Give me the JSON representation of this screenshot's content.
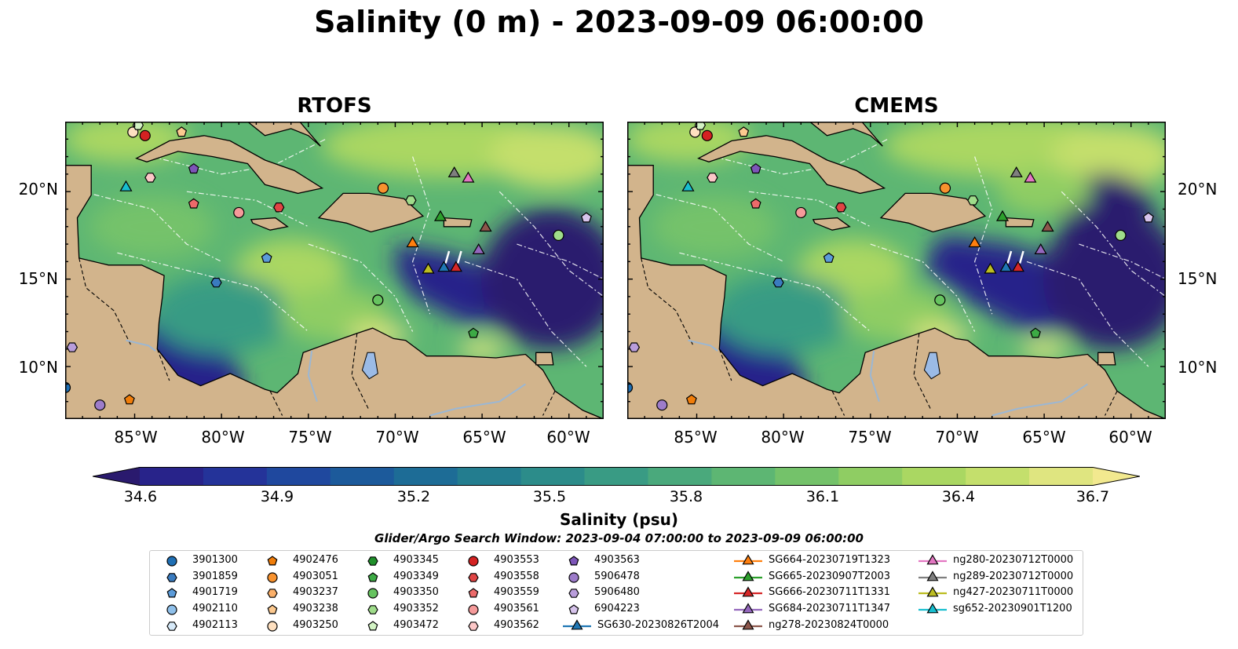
{
  "title": "Salinity (0 m) - 2023-09-09 06:00:00",
  "panels": [
    {
      "name": "RTOFS"
    },
    {
      "name": "CMEMS"
    }
  ],
  "yticks": [
    "20°N",
    "15°N",
    "10°N"
  ],
  "xticks": [
    "85°W",
    "80°W",
    "75°W",
    "70°W",
    "65°W",
    "60°W"
  ],
  "colorbar": {
    "label": "Salinity (psu)",
    "ticks": [
      "34.6",
      "34.9",
      "35.2",
      "35.5",
      "35.8",
      "36.1",
      "36.4",
      "36.7"
    ],
    "min": 34.6,
    "max": 36.7,
    "colors": [
      "#2a1a6e",
      "#28238a",
      "#243399",
      "#1f489e",
      "#1c5a9b",
      "#1d6c96",
      "#237d8f",
      "#2c8c8a",
      "#399b84",
      "#4aa97c",
      "#5db673",
      "#74c26a",
      "#8fcd63",
      "#aad762",
      "#c4df6c",
      "#dfe580",
      "#f2e98f"
    ]
  },
  "search_window": "Glider/Argo Search Window: 2023-09-04 07:00:00 to 2023-09-09 06:00:00",
  "land_color": "#d2b48c",
  "legend": [
    {
      "label": "3901300",
      "marker": "circle",
      "color": "#1f6fb4"
    },
    {
      "label": "3901859",
      "marker": "hexagon",
      "color": "#3a7bbf"
    },
    {
      "label": "4901719",
      "marker": "pentagon",
      "color": "#5b9bd9"
    },
    {
      "label": "4902110",
      "marker": "circle",
      "color": "#8fc0ea"
    },
    {
      "label": "4902113",
      "marker": "hexagon",
      "color": "#d6e9f8"
    },
    {
      "label": "4902476",
      "marker": "pentagon",
      "color": "#f07d0a"
    },
    {
      "label": "4903051",
      "marker": "circle",
      "color": "#f8922e"
    },
    {
      "label": "4903237",
      "marker": "hexagon",
      "color": "#fbb06a"
    },
    {
      "label": "4903238",
      "marker": "pentagon",
      "color": "#fcc98f"
    },
    {
      "label": "4903250",
      "marker": "circle",
      "color": "#fee0c0"
    },
    {
      "label": "4903345",
      "marker": "hexagon",
      "color": "#1f8f2a"
    },
    {
      "label": "4903349",
      "marker": "pentagon",
      "color": "#3daa45"
    },
    {
      "label": "4903350",
      "marker": "circle",
      "color": "#66c35f"
    },
    {
      "label": "4903352",
      "marker": "hexagon",
      "color": "#9fdc8a"
    },
    {
      "label": "4903472",
      "marker": "pentagon",
      "color": "#d3f3c4"
    },
    {
      "label": "4903553",
      "marker": "circle",
      "color": "#d42222"
    },
    {
      "label": "4903558",
      "marker": "hexagon",
      "color": "#e04444"
    },
    {
      "label": "4903559",
      "marker": "pentagon",
      "color": "#ec6a6a"
    },
    {
      "label": "4903561",
      "marker": "circle",
      "color": "#f59a9a"
    },
    {
      "label": "4903562",
      "marker": "hexagon",
      "color": "#fcc7c7"
    },
    {
      "label": "4903563",
      "marker": "pentagon",
      "color": "#7d55b8"
    },
    {
      "label": "5906478",
      "marker": "circle",
      "color": "#9d7cca"
    },
    {
      "label": "5906480",
      "marker": "hexagon",
      "color": "#b99ddb"
    },
    {
      "label": "6904223",
      "marker": "pentagon",
      "color": "#d7c4ec"
    },
    {
      "label": "SG630-20230826T2004",
      "marker": "triangle",
      "color": "#1f77b4"
    },
    {
      "label": "SG664-20230719T1323",
      "marker": "triangle",
      "color": "#ff7f0e"
    },
    {
      "label": "SG665-20230907T2003",
      "marker": "triangle",
      "color": "#2ca02c"
    },
    {
      "label": "SG666-20230711T1331",
      "marker": "triangle",
      "color": "#d62728"
    },
    {
      "label": "SG684-20230711T1347",
      "marker": "triangle",
      "color": "#9467bd"
    },
    {
      "label": "ng278-20230824T0000",
      "marker": "triangle",
      "color": "#8c564b"
    },
    {
      "label": "ng280-20230712T0000",
      "marker": "triangle",
      "color": "#e377c2"
    },
    {
      "label": "ng289-20230712T0000",
      "marker": "triangle",
      "color": "#7f7f7f"
    },
    {
      "label": "ng427-20230711T0000",
      "marker": "triangle",
      "color": "#bcbd22"
    },
    {
      "label": "sg652-20230901T1200",
      "marker": "triangle",
      "color": "#17becf"
    }
  ]
}
